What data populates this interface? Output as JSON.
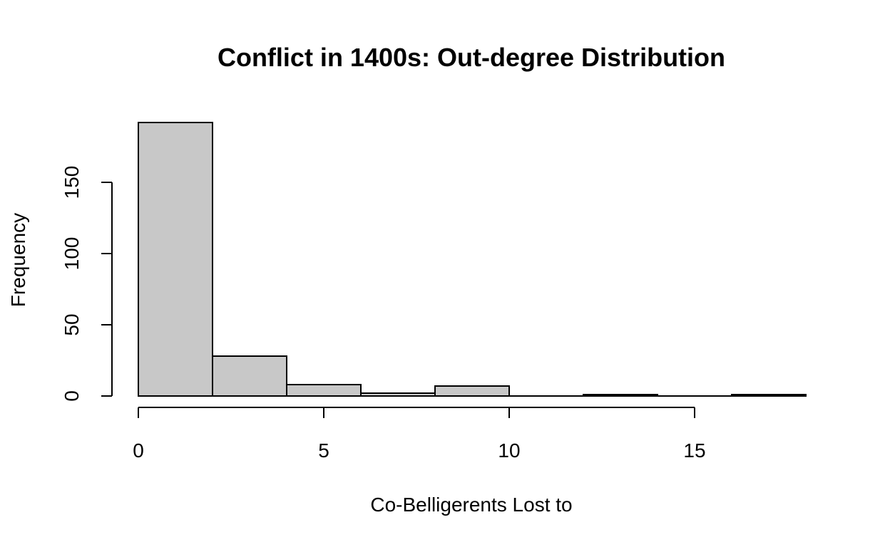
{
  "chart_data": {
    "type": "bar",
    "title": "Conflict in 1400s: Out-degree Distribution",
    "xlabel": "Co-Belligerents Lost to",
    "ylabel": "Frequency",
    "bins": [
      {
        "start": 0,
        "end": 2,
        "count": 192
      },
      {
        "start": 2,
        "end": 4,
        "count": 28
      },
      {
        "start": 4,
        "end": 6,
        "count": 8
      },
      {
        "start": 6,
        "end": 8,
        "count": 2
      },
      {
        "start": 8,
        "end": 10,
        "count": 7
      },
      {
        "start": 10,
        "end": 12,
        "count": 0
      },
      {
        "start": 12,
        "end": 14,
        "count": 1
      },
      {
        "start": 14,
        "end": 16,
        "count": 0
      },
      {
        "start": 16,
        "end": 18,
        "count": 1
      }
    ],
    "xlim": [
      0,
      18
    ],
    "ylim": [
      0,
      192
    ],
    "x_ticks": [
      0,
      5,
      10,
      15
    ],
    "y_ticks": [
      0,
      50,
      100,
      150
    ],
    "bar_color": "#c8c8c8",
    "grid": false,
    "legend": "none"
  }
}
